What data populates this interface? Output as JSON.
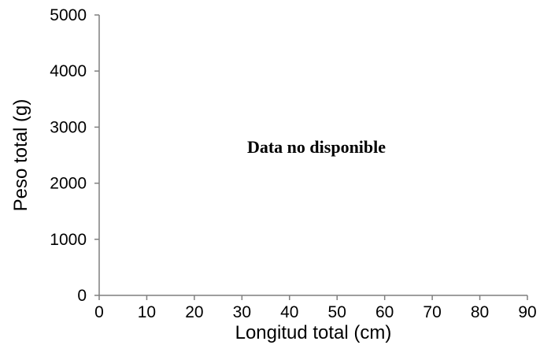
{
  "chart_data": {
    "type": "scatter",
    "title": "",
    "xlabel": "Longitud total (cm)",
    "ylabel": "Peso total (g)",
    "xlim": [
      0,
      90
    ],
    "ylim": [
      0,
      5000
    ],
    "x_ticks": [
      0,
      10,
      20,
      30,
      40,
      50,
      60,
      70,
      80,
      90
    ],
    "y_ticks": [
      0,
      1000,
      2000,
      3000,
      4000,
      5000
    ],
    "grid": false,
    "series": [],
    "annotations": [
      {
        "text": "Data no disponible"
      }
    ],
    "axis_color": "#7f7f7f"
  }
}
